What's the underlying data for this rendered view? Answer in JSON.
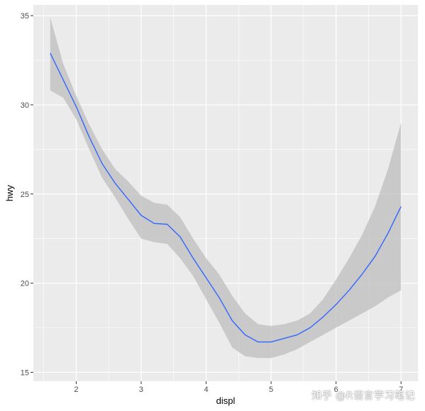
{
  "chart_data": {
    "type": "line",
    "title": "",
    "xlabel": "displ",
    "ylabel": "hwy",
    "xlim": [
      1.34,
      7.26
    ],
    "ylim": [
      14.5,
      35.6
    ],
    "x_ticks": [
      2,
      3,
      4,
      5,
      6,
      7
    ],
    "y_ticks": [
      15,
      20,
      25,
      30,
      35
    ],
    "grid": true,
    "legend": "none",
    "series": [
      {
        "type": "smooth",
        "color": "#3366FF",
        "x": [
          1.6,
          1.8,
          2.0,
          2.2,
          2.4,
          2.6,
          2.8,
          3.0,
          3.2,
          3.4,
          3.6,
          3.8,
          4.0,
          4.2,
          4.4,
          4.6,
          4.8,
          5.0,
          5.2,
          5.4,
          5.6,
          5.8,
          6.0,
          6.2,
          6.4,
          6.6,
          6.8,
          7.0
        ],
        "y": [
          32.9,
          31.4,
          29.9,
          28.2,
          26.7,
          25.6,
          24.7,
          23.8,
          23.35,
          23.3,
          22.6,
          21.4,
          20.3,
          19.2,
          17.9,
          17.1,
          16.7,
          16.7,
          16.9,
          17.1,
          17.5,
          18.1,
          18.8,
          19.6,
          20.5,
          21.5,
          22.8,
          24.3
        ],
        "ymin": [
          30.8,
          30.4,
          29.2,
          27.5,
          25.9,
          24.8,
          23.6,
          22.5,
          22.3,
          22.2,
          21.4,
          20.4,
          19.1,
          17.8,
          16.4,
          15.9,
          15.8,
          15.8,
          16.0,
          16.3,
          16.7,
          17.1,
          17.5,
          17.9,
          18.3,
          18.7,
          19.2,
          19.6
        ],
        "ymax": [
          34.9,
          32.3,
          30.5,
          28.9,
          27.5,
          26.4,
          25.7,
          24.9,
          24.5,
          24.4,
          23.7,
          22.5,
          21.4,
          20.5,
          19.3,
          18.3,
          17.7,
          17.6,
          17.7,
          17.9,
          18.3,
          19.1,
          20.2,
          21.4,
          22.7,
          24.3,
          26.4,
          29.0
        ]
      }
    ]
  },
  "watermark": "知乎 @R语言学习笔记",
  "colors": {
    "panel_background": "#EBEBEB",
    "grid_major": "#FFFFFF",
    "ribbon": "#BEBEBE",
    "line": "#3366FF"
  }
}
